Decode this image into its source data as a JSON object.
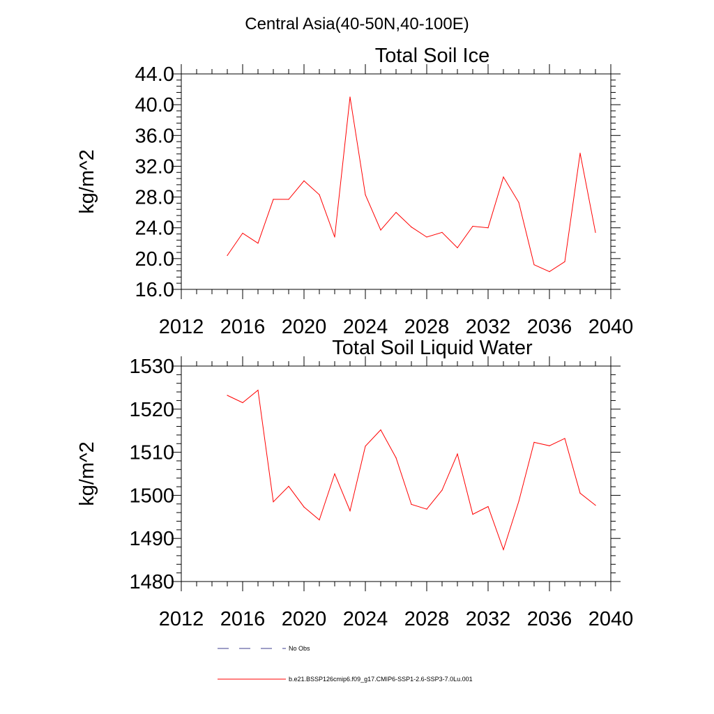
{
  "figure": {
    "suptitle": "Central Asia(40-50N,40-100E)"
  },
  "colors": {
    "model_line": "#ff0000",
    "obs_line": "#3c3c8c",
    "axes": "#000000"
  },
  "legend": {
    "placement": "bottom",
    "entries": [
      {
        "label": "No Obs",
        "style": "dashed",
        "color": "#3c3c8c"
      },
      {
        "label": "b.e21.BSSP126cmip6.f09_g17.CMIP6-SSP1-2.6-SSP3-7.0Lu.001",
        "style": "solid",
        "color": "#ff0000"
      }
    ]
  },
  "chart_data": [
    {
      "type": "line",
      "title": "Total Soil Ice",
      "xlabel": "",
      "ylabel": "kg/m^2",
      "xlim": [
        2012,
        2040
      ],
      "ylim": [
        16,
        44
      ],
      "xticks": [
        2012,
        2016,
        2020,
        2024,
        2028,
        2032,
        2036,
        2040
      ],
      "xtick_labels": [
        "2012",
        "2016",
        "2020",
        "2024",
        "2028",
        "2032",
        "2036",
        "2040"
      ],
      "yticks": [
        16,
        20,
        24,
        28,
        32,
        36,
        40,
        44
      ],
      "ytick_labels": [
        "16.0",
        "20.0",
        "24.0",
        "28.0",
        "32.0",
        "36.0",
        "40.0",
        "44.0"
      ],
      "grid": false,
      "x": [
        2015,
        2016,
        2017,
        2018,
        2019,
        2020,
        2021,
        2022,
        2023,
        2024,
        2025,
        2026,
        2027,
        2028,
        2029,
        2030,
        2031,
        2032,
        2033,
        2034,
        2035,
        2036,
        2037,
        2038,
        2039
      ],
      "series": [
        {
          "color": "#ff0000",
          "values": [
            20.4,
            23.3,
            22.0,
            27.7,
            27.7,
            30.1,
            28.3,
            22.8,
            41.0,
            28.3,
            23.7,
            26.0,
            24.1,
            22.8,
            23.4,
            21.4,
            24.2,
            24.0,
            30.6,
            27.3,
            19.2,
            18.3,
            19.6,
            33.7,
            23.4
          ]
        }
      ]
    },
    {
      "type": "line",
      "title": "Total Soil Liquid Water",
      "xlabel": "",
      "ylabel": "kg/m^2",
      "xlim": [
        2012,
        2040
      ],
      "ylim": [
        1480,
        1530
      ],
      "xticks": [
        2012,
        2016,
        2020,
        2024,
        2028,
        2032,
        2036,
        2040
      ],
      "xtick_labels": [
        "2012",
        "2016",
        "2020",
        "2024",
        "2028",
        "2032",
        "2036",
        "2040"
      ],
      "yticks": [
        1480,
        1490,
        1500,
        1510,
        1520,
        1530
      ],
      "ytick_labels": [
        "1480",
        "1490",
        "1500",
        "1510",
        "1520",
        "1530"
      ],
      "grid": false,
      "x": [
        2015,
        2016,
        2017,
        2018,
        2019,
        2020,
        2021,
        2022,
        2023,
        2024,
        2025,
        2026,
        2027,
        2028,
        2029,
        2030,
        2031,
        2032,
        2033,
        2034,
        2035,
        2036,
        2037,
        2038,
        2039
      ],
      "series": [
        {
          "color": "#ff0000",
          "values": [
            1523.2,
            1521.5,
            1524.4,
            1498.5,
            1502.1,
            1497.3,
            1494.3,
            1505.0,
            1496.4,
            1511.4,
            1515.2,
            1508.7,
            1497.9,
            1496.8,
            1501.2,
            1509.6,
            1495.6,
            1497.4,
            1487.4,
            1498.6,
            1512.3,
            1511.5,
            1513.2,
            1500.5,
            1497.7
          ]
        }
      ]
    }
  ]
}
